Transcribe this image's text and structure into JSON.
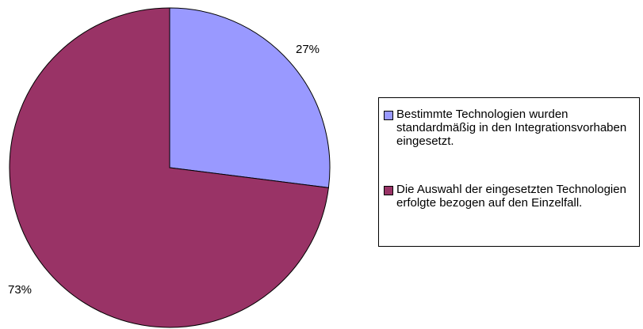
{
  "chart_data": {
    "type": "pie",
    "start_angle": "12 o'clock",
    "direction": "clockwise",
    "legend_position": "right",
    "slices": [
      {
        "label": "Bestimmte Technologien wurden standardmäßig in den Integrationsvorhaben eingesetzt.",
        "value": 27,
        "value_label": "27%",
        "color": "#9999ff"
      },
      {
        "label": "Die Auswahl der eingesetzten Technologien erfolgte bezogen auf den Einzelfall.",
        "value": 73,
        "value_label": "73%",
        "color": "#993366"
      }
    ]
  }
}
